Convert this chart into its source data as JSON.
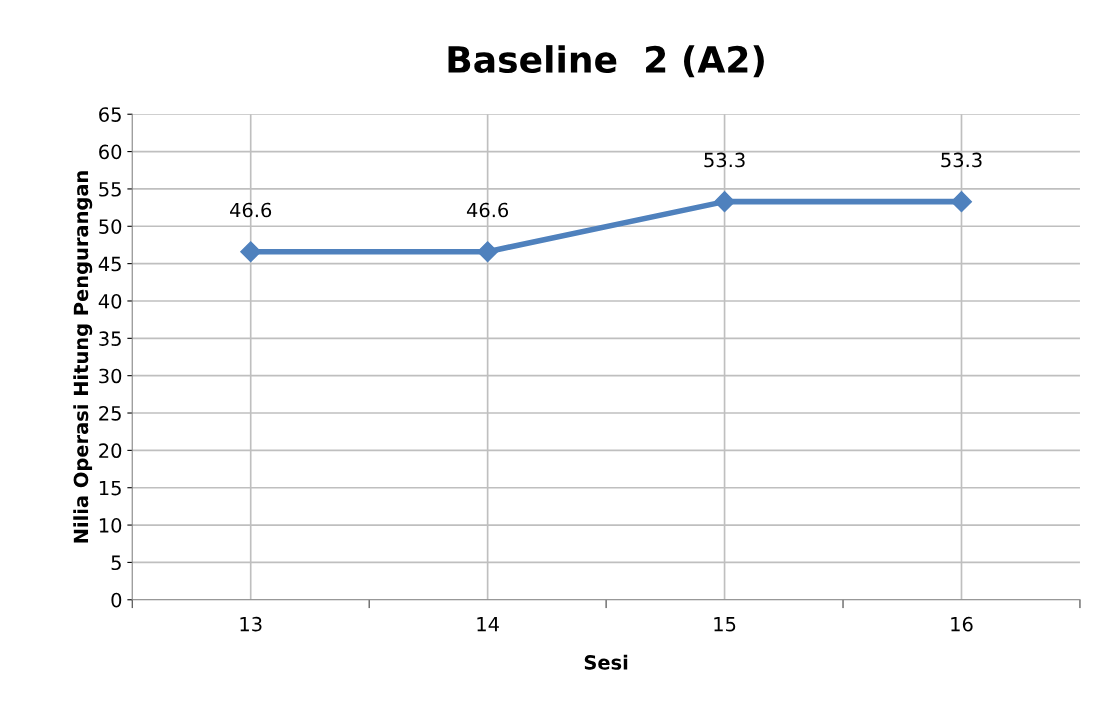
{
  "chart_data": {
    "type": "line",
    "title": "Baseline  2 (A2)",
    "xlabel": "Sesi",
    "ylabel": "Nilia Operasi Hitung Pengurangan",
    "categories": [
      "13",
      "14",
      "15",
      "16"
    ],
    "series": [
      {
        "color": "#4f81bd",
        "values": [
          46.6,
          46.6,
          53.3,
          53.3
        ]
      }
    ],
    "ylim": [
      0,
      65
    ],
    "yticks": [
      0,
      5,
      10,
      15,
      20,
      25,
      30,
      35,
      40,
      45,
      50,
      55,
      60,
      65
    ],
    "grid": true,
    "marker": "diamond",
    "line_style": "solid",
    "data_labels": true,
    "legend": false
  }
}
